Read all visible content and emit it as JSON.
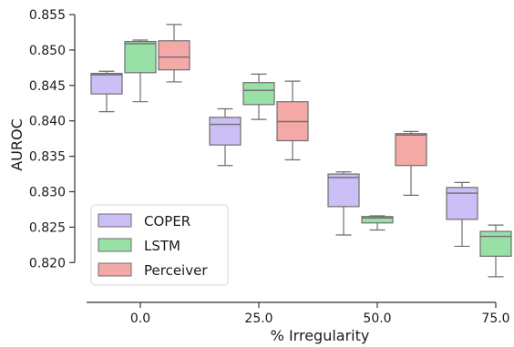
{
  "chart_data": {
    "type": "box",
    "title": "",
    "xlabel": "% Irregularity",
    "ylabel": "AUROC",
    "categories": [
      "0.0",
      "25.0",
      "50.0",
      "75.0"
    ],
    "ylim": [
      0.8185,
      0.855
    ],
    "yticks": [
      "0.820",
      "0.825",
      "0.830",
      "0.835",
      "0.840",
      "0.845",
      "0.850",
      "0.855"
    ],
    "legend_position": "lower-left",
    "grid": false,
    "series": [
      {
        "name": "COPER",
        "color": "#cbbff5",
        "boxes": [
          {
            "min": 0.8413,
            "q1": 0.8438,
            "median": 0.8465,
            "q3": 0.8467,
            "max": 0.847
          },
          {
            "min": 0.8337,
            "q1": 0.8366,
            "median": 0.8395,
            "q3": 0.8405,
            "max": 0.8417
          },
          {
            "min": 0.8239,
            "q1": 0.8279,
            "median": 0.832,
            "q3": 0.8325,
            "max": 0.8328
          },
          {
            "min": 0.8223,
            "q1": 0.8261,
            "median": 0.8298,
            "q3": 0.8306,
            "max": 0.8313
          }
        ]
      },
      {
        "name": "LSTM",
        "color": "#99e0a7",
        "boxes": [
          {
            "min": 0.8427,
            "q1": 0.8468,
            "median": 0.8509,
            "q3": 0.8512,
            "max": 0.8514
          },
          {
            "min": 0.8402,
            "q1": 0.8423,
            "median": 0.8443,
            "q3": 0.8454,
            "max": 0.8466
          },
          {
            "min": 0.8246,
            "q1": 0.8256,
            "median": 0.8263,
            "q3": 0.8265,
            "max": 0.8266
          },
          {
            "min": 0.818,
            "q1": 0.8209,
            "median": 0.8237,
            "q3": 0.8244,
            "max": 0.8253
          }
        ]
      },
      {
        "name": "Perceiver",
        "color": "#f4a9a6",
        "boxes": [
          {
            "min": 0.8455,
            "q1": 0.8472,
            "median": 0.849,
            "q3": 0.8513,
            "max": 0.8536
          },
          {
            "min": 0.8345,
            "q1": 0.8372,
            "median": 0.8399,
            "q3": 0.8427,
            "max": 0.8456
          },
          {
            "min": 0.8295,
            "q1": 0.8337,
            "median": 0.838,
            "q3": 0.8382,
            "max": 0.8385
          },
          null
        ]
      }
    ]
  }
}
